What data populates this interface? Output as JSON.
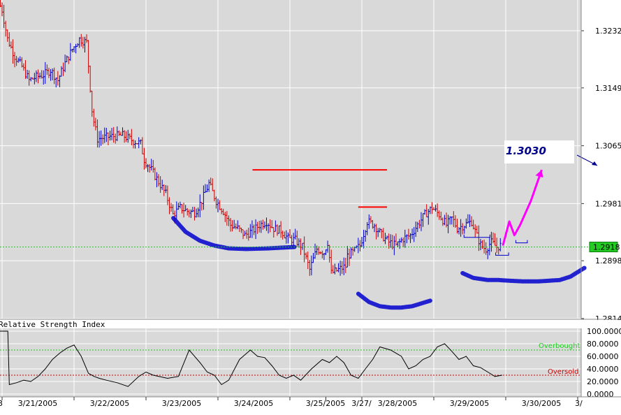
{
  "chart_data": [
    {
      "type": "candlestick",
      "title": "",
      "price_axis": {
        "ticks": [
          "1.3232",
          "1.3149",
          "1.3065",
          "1.2981",
          "1.2898",
          "1.2814"
        ],
        "tick_values": [
          1.3232,
          1.3149,
          1.3065,
          1.2981,
          1.2898,
          1.2814
        ],
        "ylim": [
          1.2814,
          1.326
        ],
        "side": "right"
      },
      "current_price": {
        "label": "1.2918",
        "value": 1.2918,
        "color": "#22cc22"
      },
      "target": {
        "label": "1.3030",
        "value": 1.303
      },
      "resistance_lines": [
        {
          "value": 1.303,
          "from_x": 3.48,
          "to_x": 5.35,
          "color": "#ff0000"
        },
        {
          "value": 1.2976,
          "from_x": 4.95,
          "to_x": 5.35,
          "color": "#ff0000"
        }
      ],
      "candle_colors": {
        "up": "#0000cc",
        "down": "#cc0000"
      },
      "grid": true,
      "price_path": {
        "x": [
          -0.05,
          0.02,
          0.1,
          0.2,
          0.3,
          0.4,
          0.5,
          0.6,
          0.7,
          0.8,
          0.9,
          1.0,
          1.1,
          1.2,
          1.28,
          1.35,
          1.5,
          1.7,
          1.85,
          1.95,
          2.0,
          2.1,
          2.3,
          2.4,
          2.5,
          2.6,
          2.7,
          2.8,
          2.9,
          3.0,
          3.1,
          3.2,
          3.3,
          3.4,
          3.48,
          3.55,
          3.6,
          3.7,
          3.8,
          3.9,
          4.0,
          4.1,
          4.2,
          4.3,
          4.4,
          4.5,
          4.55,
          4.6,
          4.7,
          4.8,
          4.82,
          4.9,
          5.0,
          5.1,
          5.2,
          5.3,
          5.4,
          5.5,
          5.6,
          5.7,
          5.8,
          5.9,
          6.0,
          6.1,
          6.2,
          6.28,
          6.35,
          6.45,
          6.55,
          6.62,
          6.68,
          6.75,
          6.82,
          6.9,
          6.95
        ],
        "values": [
          1.3275,
          1.3265,
          1.322,
          1.3195,
          1.318,
          1.316,
          1.3165,
          1.3168,
          1.3175,
          1.316,
          1.3185,
          1.3205,
          1.322,
          1.3215,
          1.311,
          1.3075,
          1.3078,
          1.308,
          1.3072,
          1.3068,
          1.3045,
          1.303,
          1.2995,
          1.2965,
          1.2975,
          1.297,
          1.2968,
          1.2985,
          1.301,
          1.2985,
          1.297,
          1.295,
          1.2945,
          1.2935,
          1.294,
          1.2945,
          1.295,
          1.2955,
          1.2945,
          1.2942,
          1.293,
          1.2928,
          1.2918,
          1.2885,
          1.2915,
          1.291,
          1.2925,
          1.288,
          1.2885,
          1.289,
          1.2905,
          1.291,
          1.292,
          1.2955,
          1.295,
          1.2935,
          1.2925,
          1.292,
          1.293,
          1.2935,
          1.295,
          1.2965,
          1.2975,
          1.2965,
          1.295,
          1.296,
          1.2945,
          1.295,
          1.2955,
          1.2935,
          1.292,
          1.2915,
          1.2925,
          1.2918,
          1.292
        ]
      },
      "annotations": {
        "projection_path": {
          "x": [
            6.96,
            7.05,
            7.12,
            7.2,
            7.35,
            7.5
          ],
          "values": [
            1.292,
            1.2955,
            1.2935,
            1.295,
            1.2985,
            1.303
          ],
          "color": "#ff00ff"
        },
        "hand_arcs": {
          "color": "#0000cc",
          "arcs": [
            {
              "x": [
                2.38,
                2.55,
                2.75,
                2.95,
                3.15,
                3.4,
                3.7,
                4.07
              ],
              "values": [
                1.296,
                1.294,
                1.2927,
                1.292,
                1.2916,
                1.2915,
                1.2916,
                1.2918
              ]
            },
            {
              "x": [
                4.95,
                5.1,
                5.25,
                5.4,
                5.55,
                5.7,
                5.95
              ],
              "values": [
                1.285,
                1.2838,
                1.2832,
                1.283,
                1.283,
                1.2832,
                1.284
              ]
            },
            {
              "x": [
                6.4,
                6.55,
                6.75,
                6.9,
                7.05,
                7.25,
                7.45,
                7.6,
                7.75,
                7.9,
                8.1
              ],
              "values": [
                1.288,
                1.2873,
                1.287,
                1.287,
                1.2869,
                1.2868,
                1.2868,
                1.2869,
                1.287,
                1.2875,
                1.2888
              ]
            }
          ]
        },
        "brackets": [
          {
            "x": [
              6.42,
              6.78
            ],
            "value": 1.2932
          },
          {
            "x": [
              6.86,
              7.04
            ],
            "value": 1.2906
          },
          {
            "x": [
              7.14,
              7.3
            ],
            "value": 1.2924
          }
        ]
      }
    },
    {
      "type": "line",
      "title": "Relative Strength Index",
      "y_ticks": [
        "100.0000",
        "80.0000",
        "60.0000",
        "40.0000",
        "20.0000",
        "0.0000"
      ],
      "y_tick_values": [
        100,
        80,
        60,
        40,
        20,
        0
      ],
      "ylim": [
        0,
        100
      ],
      "overbought": {
        "label": "Overbought",
        "value": 70,
        "color": "#22cc22"
      },
      "oversold": {
        "label": "Oversold",
        "value": 30,
        "color": "#cc0000"
      },
      "grid": true,
      "series": [
        {
          "x": [
            -0.05,
            0.08,
            0.1,
            0.2,
            0.3,
            0.4,
            0.5,
            0.6,
            0.7,
            0.8,
            0.9,
            1.0,
            1.1,
            1.2,
            1.28,
            1.35,
            1.45,
            1.6,
            1.75,
            1.9,
            2.0,
            2.1,
            2.3,
            2.45,
            2.6,
            2.75,
            2.85,
            2.95,
            3.05,
            3.15,
            3.3,
            3.45,
            3.55,
            3.65,
            3.75,
            3.85,
            3.95,
            4.05,
            4.15,
            4.3,
            4.45,
            4.55,
            4.65,
            4.75,
            4.85,
            4.95,
            5.05,
            5.15,
            5.25,
            5.4,
            5.55,
            5.65,
            5.75,
            5.85,
            5.95,
            6.05,
            6.15,
            6.25,
            6.35,
            6.45,
            6.55,
            6.65,
            6.75,
            6.85,
            6.95
          ],
          "values": [
            100,
            100,
            15,
            18,
            22,
            20,
            28,
            40,
            55,
            65,
            73,
            78,
            60,
            33,
            28,
            25,
            22,
            18,
            12,
            28,
            35,
            30,
            25,
            28,
            70,
            50,
            35,
            30,
            15,
            22,
            55,
            70,
            60,
            58,
            45,
            30,
            25,
            30,
            22,
            40,
            55,
            50,
            60,
            50,
            30,
            25,
            40,
            55,
            75,
            70,
            60,
            40,
            45,
            55,
            60,
            75,
            80,
            68,
            55,
            60,
            45,
            42,
            35,
            28,
            30
          ]
        }
      ]
    },
    {
      "type": "axis",
      "date_labels": [
        "3/21/2005",
        "3/22/2005",
        "3/23/2005",
        "3/24/2005",
        "3/25/2005",
        "3/27/",
        "3/28/2005",
        "3/29/2005",
        "3/30/2005",
        "3/"
      ],
      "date_positions": [
        0,
        1,
        2,
        3,
        4,
        4.5,
        5,
        6,
        7,
        8
      ],
      "edge_label": "3"
    }
  ],
  "icons": {
    "target_arrow": "arrow-icon"
  }
}
